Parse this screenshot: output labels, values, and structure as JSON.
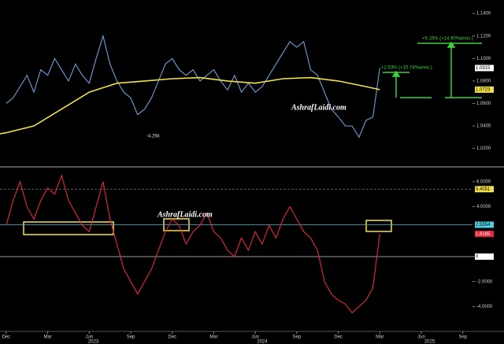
{
  "chart_data": [
    {
      "type": "line",
      "xlim": [
        -0.45,
        33.7
      ],
      "ylim": [
        1.005,
        1.152
      ],
      "yticks": [
        {
          "value": 1.02,
          "label": "1.0200"
        },
        {
          "value": 1.04,
          "label": "1.0400"
        },
        {
          "value": 1.06,
          "label": "1.0600"
        },
        {
          "value": 1.08,
          "label": "1.0800"
        },
        {
          "value": 1.1,
          "label": "1.1000"
        },
        {
          "value": 1.12,
          "label": "1.1200"
        },
        {
          "value": 1.14,
          "label": "1.1400"
        }
      ],
      "grid": false,
      "series": [
        {
          "color": "#6f9fd8",
          "x": [
            0,
            0.5,
            1,
            1.5,
            2,
            2.5,
            3,
            3.5,
            4,
            4.5,
            5,
            5.5,
            6,
            6.5,
            7,
            7.5,
            8,
            8.5,
            9,
            9.5,
            10,
            10.5,
            11,
            11.5,
            12,
            12.5,
            13,
            13.5,
            14,
            14.5,
            15,
            15.5,
            16,
            16.5,
            17,
            17.5,
            18,
            18.5,
            19,
            19.5,
            20,
            20.5,
            21,
            21.5,
            22,
            22.5,
            23,
            23.5,
            24,
            24.5,
            25,
            25.5,
            26,
            26.5,
            27
          ],
          "values": [
            1.06,
            1.065,
            1.075,
            1.085,
            1.07,
            1.09,
            1.085,
            1.1,
            1.09,
            1.08,
            1.095,
            1.085,
            1.078,
            1.1,
            1.12,
            1.095,
            1.08,
            1.07,
            1.065,
            1.05,
            1.055,
            1.065,
            1.08,
            1.095,
            1.1,
            1.09,
            1.085,
            1.09,
            1.08,
            1.085,
            1.09,
            1.08,
            1.072,
            1.085,
            1.07,
            1.078,
            1.07,
            1.075,
            1.085,
            1.095,
            1.105,
            1.115,
            1.11,
            1.115,
            1.09,
            1.085,
            1.07,
            1.055,
            1.048,
            1.04,
            1.04,
            1.03,
            1.045,
            1.048,
            1.0915
          ]
        },
        {
          "color": "#f2e24a",
          "x": [
            -0.45,
            0,
            2,
            4,
            6,
            8,
            10,
            12,
            14,
            16,
            18,
            20,
            22,
            24,
            26,
            27
          ],
          "values": [
            1.033,
            1.034,
            1.04,
            1.055,
            1.07,
            1.078,
            1.08,
            1.082,
            1.083,
            1.08,
            1.078,
            1.082,
            1.083,
            1.08,
            1.075,
            1.0723
          ]
        }
      ],
      "levels": [
        {
          "value": 1.0915,
          "color": "#ffffff",
          "text_color": "#000000"
        },
        {
          "value": 1.0723,
          "color": "#f2e24a",
          "text_color": "#000000"
        }
      ],
      "annotations": [
        "-4.26k",
        "AshrafLaidi.com",
        "+2.53% (+15.74%anns.)",
        "+5.15% (+14.90%anns.)"
      ]
    },
    {
      "type": "line",
      "xlim": [
        -0.45,
        33.7
      ],
      "ylim": [
        -5.93,
        7.0
      ],
      "yticks": [
        {
          "value": -4,
          "label": "-4.0000"
        },
        {
          "value": -2,
          "label": "-2.0000"
        },
        {
          "value": 0,
          "label": "0.0000"
        },
        {
          "value": 4,
          "label": "4.0000"
        },
        {
          "value": 6,
          "label": "6.0000"
        }
      ],
      "grid": false,
      "series": [
        {
          "color": "#e8283c",
          "x": [
            0,
            0.5,
            1,
            1.5,
            2,
            2.5,
            3,
            3.5,
            4,
            4.5,
            5,
            5.5,
            6,
            6.5,
            7,
            7.5,
            8,
            8.5,
            9,
            9.5,
            10,
            10.5,
            11,
            11.5,
            12,
            12.5,
            13,
            13.5,
            14,
            14.5,
            15,
            15.5,
            16,
            16.5,
            17,
            17.5,
            18,
            18.5,
            19,
            19.5,
            20,
            20.5,
            21,
            21.5,
            22,
            22.5,
            23,
            23.5,
            24,
            24.5,
            25,
            25.5,
            26,
            26.5,
            27
          ],
          "values": [
            2.5,
            4.5,
            6.0,
            4.0,
            3.0,
            4.5,
            5.5,
            5.0,
            6.5,
            4.5,
            3.5,
            2.5,
            2.0,
            4.0,
            6.0,
            3.0,
            1.0,
            -1.0,
            -2.0,
            -3.0,
            -2.0,
            -1.0,
            0.5,
            2.0,
            3.0,
            2.5,
            1.0,
            2.0,
            2.5,
            3.5,
            2.0,
            1.5,
            0.5,
            0.0,
            1.5,
            0.5,
            2.0,
            1.0,
            2.5,
            1.5,
            3.0,
            4.0,
            3.0,
            2.0,
            1.5,
            0.5,
            -2.0,
            -3.0,
            -3.5,
            -3.8,
            -4.5,
            -4.0,
            -3.5,
            -2.5,
            1.8165
          ]
        }
      ],
      "levels": [
        {
          "value": 5.4051,
          "color": "#f2e24a",
          "text_color": "#000000",
          "line": "#777777"
        },
        {
          "value": 2.5554,
          "color": "#4fd0e0",
          "text_color": "#000000",
          "line": "#4fb8d0"
        },
        {
          "value": 1.8165,
          "color": "#e8283c",
          "text_color": "#ffffff"
        },
        {
          "value": 0,
          "color": "#ffffff",
          "text_color": "#000000",
          "line": "#cccccc"
        }
      ],
      "annotations": [
        "AshrafLaidi.com"
      ],
      "xticks": [
        {
          "value": 0,
          "label": "Dec"
        },
        {
          "value": 3,
          "label": "Mar"
        },
        {
          "value": 6,
          "label": "Jun"
        },
        {
          "value": 9,
          "label": "Sep"
        },
        {
          "value": 12,
          "label": "Dec"
        },
        {
          "value": 15,
          "label": "Mar"
        },
        {
          "value": 18,
          "label": "Jun"
        },
        {
          "value": 21,
          "label": "Sep"
        },
        {
          "value": 24,
          "label": "Dec"
        },
        {
          "value": 27,
          "label": "Mar"
        },
        {
          "value": 30,
          "label": "Jun"
        },
        {
          "value": 33,
          "label": "Sep"
        }
      ],
      "year_ticks": [
        {
          "value": 6.3,
          "label": "2023"
        },
        {
          "value": 18.5,
          "label": "2024"
        },
        {
          "value": 30.6,
          "label": "2025"
        }
      ]
    }
  ]
}
